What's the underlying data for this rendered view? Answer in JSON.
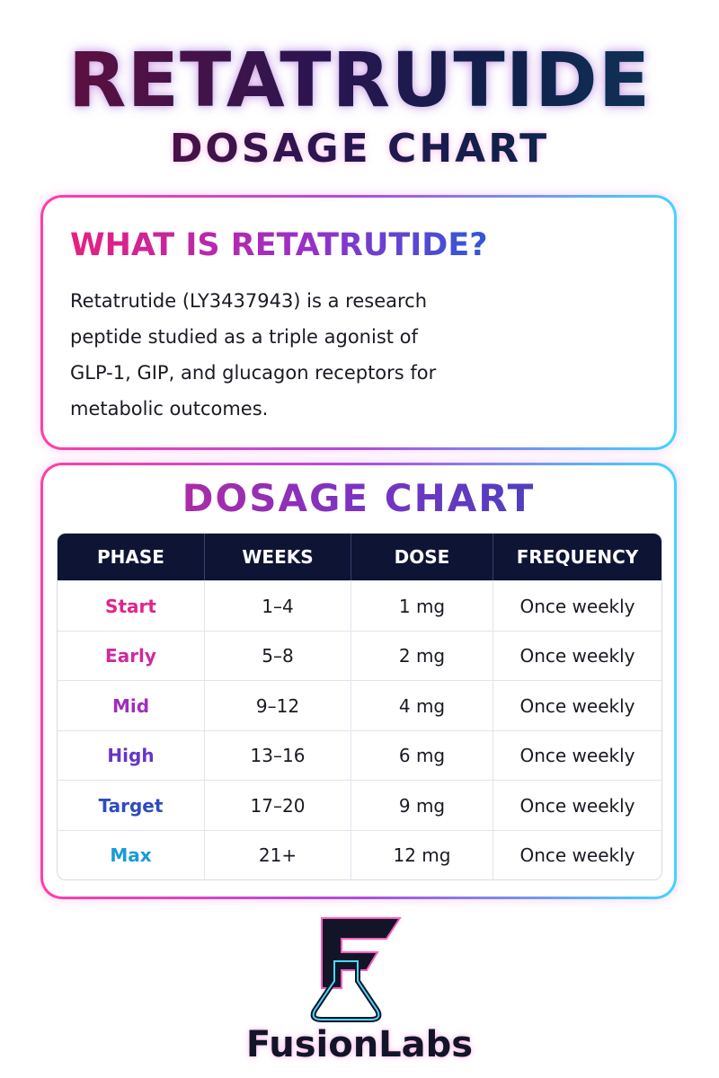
{
  "header": {
    "title": "RETATRUTIDE",
    "subtitle": "DOSAGE CHART"
  },
  "intro": {
    "heading": "WHAT IS RETATRUTIDE?",
    "text": "Retatrutide (LY3437943) is a research peptide studied as a triple agonist of GLP-1, GIP, and glucagon receptors for metabolic outcomes."
  },
  "table": {
    "title": "DOSAGE CHART",
    "columns": [
      "PHASE",
      "WEEKS",
      "DOSE",
      "FREQUENCY"
    ],
    "rows": [
      [
        "Start",
        "1–4",
        "1 mg",
        "Once weekly"
      ],
      [
        "Early",
        "5–8",
        "2 mg",
        "Once weekly"
      ],
      [
        "Mid",
        "9–12",
        "4 mg",
        "Once weekly"
      ],
      [
        "High",
        "13–16",
        "6 mg",
        "Once weekly"
      ],
      [
        "Target",
        "17–20",
        "9 mg",
        "Once weekly"
      ],
      [
        "Max",
        "21+",
        "12 mg",
        "Once weekly"
      ]
    ]
  },
  "footer": {
    "brand": "FusionLabs"
  }
}
